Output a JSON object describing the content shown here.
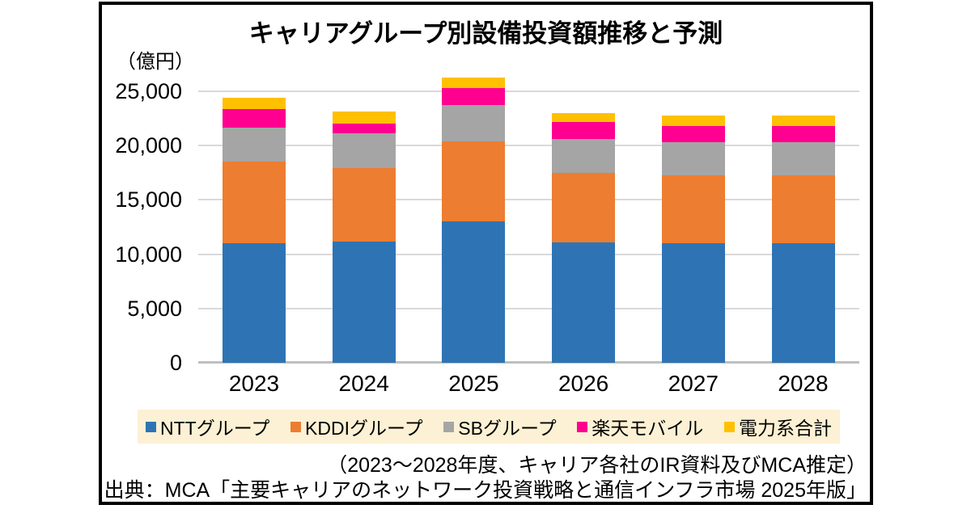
{
  "unit_label": "（億円）",
  "chart_data": {
    "type": "bar",
    "stacked": true,
    "title": "キャリアグループ別設備投資額推移と予測",
    "unit": "億円",
    "categories": [
      "2023",
      "2024",
      "2025",
      "2026",
      "2027",
      "2028"
    ],
    "series": [
      {
        "name": "NTTグループ",
        "color": "#2E74B5",
        "values": [
          11050,
          11150,
          13000,
          11100,
          11050,
          11050
        ]
      },
      {
        "name": "KDDIグループ",
        "color": "#ED7D31",
        "values": [
          7500,
          6800,
          7400,
          6350,
          6250,
          6250
        ]
      },
      {
        "name": "SBグループ",
        "color": "#A5A5A5",
        "values": [
          3100,
          3150,
          3300,
          3150,
          3050,
          3000
        ]
      },
      {
        "name": "楽天モバイル",
        "color": "#FF0090",
        "values": [
          1690,
          950,
          1600,
          1550,
          1450,
          1500
        ]
      },
      {
        "name": "電力系合計",
        "color": "#FFC000",
        "values": [
          1060,
          1100,
          1000,
          850,
          1000,
          1000
        ]
      }
    ],
    "ylim": [
      0,
      25000
    ],
    "yticks": [
      {
        "value": 25000,
        "label": "25,000"
      },
      {
        "value": 20000,
        "label": "20,000"
      },
      {
        "value": 15000,
        "label": "15,000"
      },
      {
        "value": 10000,
        "label": "10,000"
      },
      {
        "value": 5000,
        "label": "5,000"
      },
      {
        "value": 0,
        "label": "0"
      }
    ],
    "grid": true,
    "legend_position": "bottom"
  },
  "legend": {
    "items": [
      "NTTグループ",
      "KDDIグループ",
      "SBグループ",
      "楽天モバイル",
      "電力系合計"
    ]
  },
  "notes": {
    "line1": "（2023～2028年度、キャリア各社のIR資料及びMCA推定）",
    "line2": "出典：MCA「主要キャリアのネットワーク投資戦略と通信インフラ市場 2025年版」"
  },
  "colors": {
    "frame_border": "#000000",
    "gridline": "#D9D9D9",
    "axis_line": "#BFBFBF",
    "legend_bg": "#FCF1D4",
    "text": "#000000"
  }
}
